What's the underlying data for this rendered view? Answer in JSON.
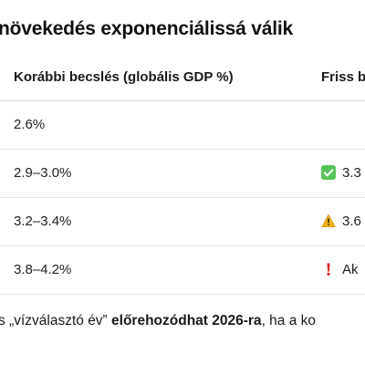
{
  "heading": "növekedés exponenciálissá válik",
  "table": {
    "header": {
      "col_a": "Korábbi becslés (globális GDP %)",
      "col_b": "Friss b"
    },
    "rows": [
      {
        "col_a": "2.6%",
        "col_b": "",
        "icon": ""
      },
      {
        "col_a": "2.9–3.0%",
        "col_b": "3.3",
        "icon": "check-mark-icon"
      },
      {
        "col_a": "3.2–3.4%",
        "col_b": "3.6",
        "icon": "warning-icon"
      },
      {
        "col_a": "3.8–4.2%",
        "col_b": "Ak",
        "icon": "exclamation-icon"
      }
    ]
  },
  "footer": {
    "part1": "s „vízválasztó év” ",
    "bold": "előrehozódhat 2026-ra",
    "part2": ", ha a ko"
  },
  "colors": {
    "check": "#58c35a",
    "warning": "#f2b01e",
    "exclamation": "#e02828"
  }
}
